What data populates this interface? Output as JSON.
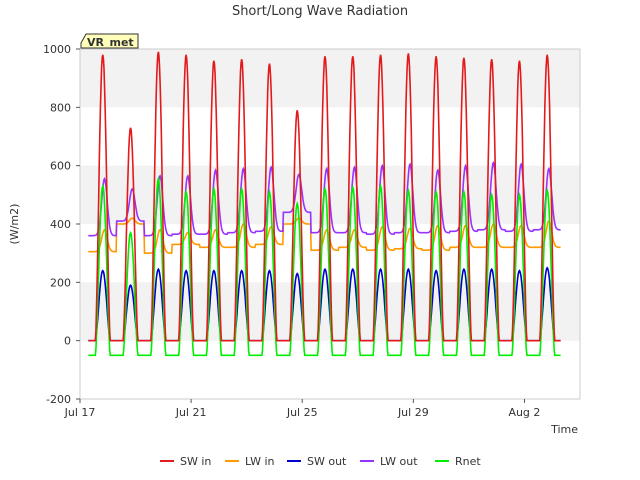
{
  "chart_data": {
    "type": "line",
    "title": "Short/Long Wave Radiation",
    "xlabel": "Time",
    "ylabel": "(W/m2)",
    "site_label": "VR_met",
    "ylim": [
      -200,
      1000
    ],
    "yticks": [
      -200,
      0,
      200,
      400,
      600,
      800,
      1000
    ],
    "xlim_days": [
      0,
      18
    ],
    "xticks": [
      {
        "day": 0,
        "label": "Jul 17"
      },
      {
        "day": 4,
        "label": "Jul 21"
      },
      {
        "day": 8,
        "label": "Jul 25"
      },
      {
        "day": 12,
        "label": "Jul 29"
      },
      {
        "day": 16,
        "label": "Aug 2"
      }
    ],
    "grid": "horizontal bands",
    "legend_position": "bottom",
    "days": [
      "Jul 17",
      "Jul 18",
      "Jul 19",
      "Jul 20",
      "Jul 21",
      "Jul 22",
      "Jul 23",
      "Jul 24",
      "Jul 25",
      "Jul 26",
      "Jul 27",
      "Jul 28",
      "Jul 29",
      "Jul 30",
      "Jul 31",
      "Aug 1",
      "Aug 2",
      "Aug 3"
    ],
    "series": [
      {
        "name": "SW in",
        "color": "#e31a1c",
        "kind": "solar",
        "daily_peak": [
          980,
          730,
          990,
          980,
          960,
          965,
          950,
          790,
          975,
          975,
          980,
          985,
          975,
          970,
          965,
          960,
          980
        ]
      },
      {
        "name": "LW in",
        "color": "#ff9900",
        "kind": "longwave",
        "daily_min": [
          305,
          400,
          300,
          330,
          320,
          320,
          330,
          400,
          310,
          320,
          310,
          315,
          310,
          320,
          320,
          320,
          320
        ],
        "daily_max": [
          380,
          420,
          380,
          370,
          380,
          400,
          390,
          420,
          380,
          380,
          390,
          385,
          395,
          395,
          400,
          395,
          410
        ]
      },
      {
        "name": "SW out",
        "color": "#0000cc",
        "kind": "solar",
        "daily_peak": [
          240,
          190,
          245,
          240,
          240,
          240,
          240,
          230,
          245,
          245,
          245,
          245,
          240,
          245,
          245,
          240,
          250
        ]
      },
      {
        "name": "LW out",
        "color": "#9933ff",
        "kind": "longwave",
        "daily_min": [
          360,
          410,
          360,
          365,
          365,
          370,
          375,
          440,
          370,
          370,
          365,
          370,
          370,
          375,
          380,
          375,
          380
        ],
        "daily_max": [
          555,
          520,
          565,
          565,
          585,
          590,
          595,
          570,
          590,
          595,
          600,
          605,
          585,
          600,
          610,
          605,
          590
        ]
      },
      {
        "name": "Rnet",
        "color": "#00ee00",
        "kind": "net",
        "daily_peak": [
          530,
          370,
          555,
          510,
          520,
          520,
          510,
          470,
          520,
          525,
          530,
          515,
          510,
          510,
          500,
          500,
          515
        ],
        "night_value": -50
      }
    ]
  }
}
